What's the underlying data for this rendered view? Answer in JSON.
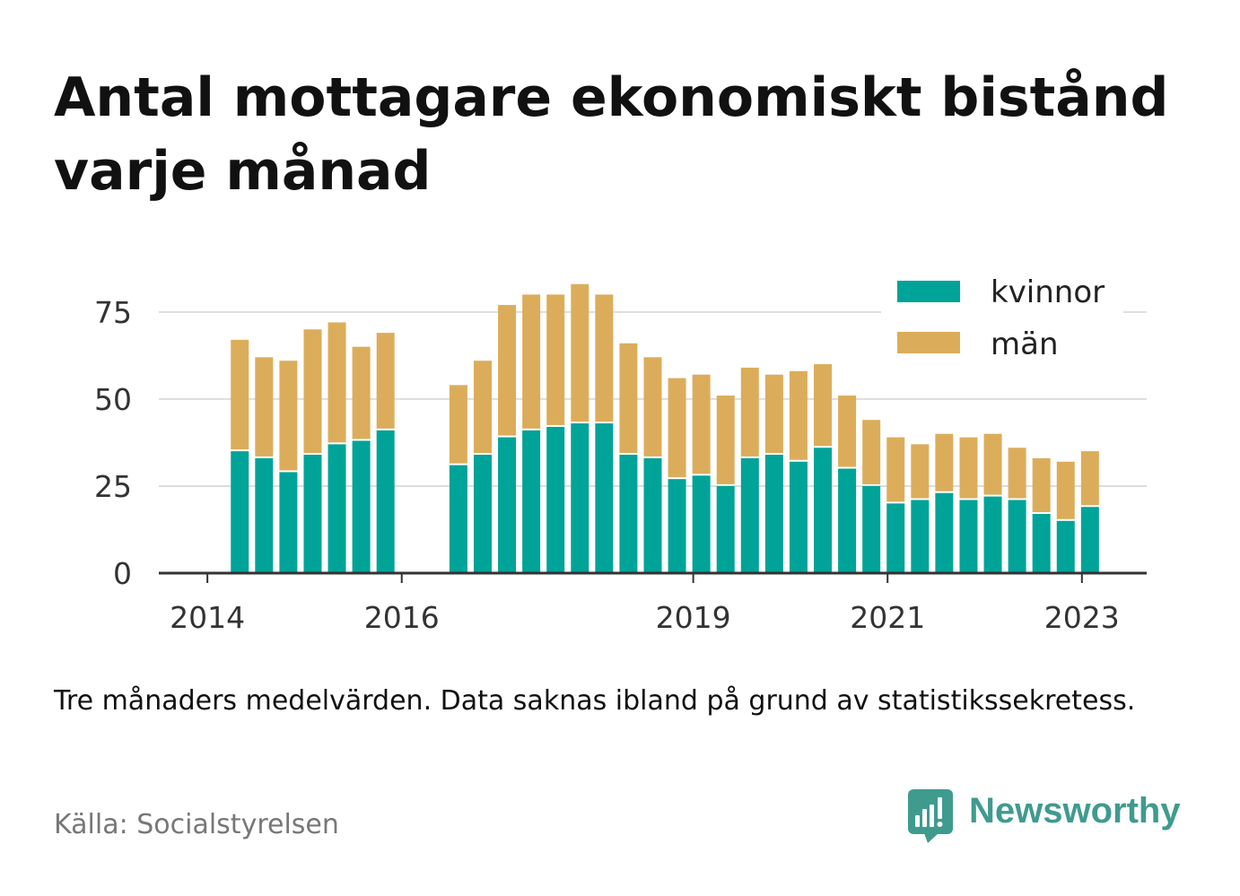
{
  "chart_data": {
    "type": "bar",
    "stacked": true,
    "title": "Antal mottagare ekonomiskt bistånd varje månad",
    "x_scale": "time",
    "xlim": [
      "2013-07",
      "2023-09"
    ],
    "ylim": [
      0,
      85
    ],
    "x_ticks": [
      "2014",
      "2016",
      "2019",
      "2021",
      "2023"
    ],
    "y_ticks": [
      0,
      25,
      50,
      75
    ],
    "grid": true,
    "legend_position": "top-right",
    "x": [
      "2014-05",
      "2014-08",
      "2014-11",
      "2015-02",
      "2015-05",
      "2015-08",
      "2015-11",
      "2016-08",
      "2016-11",
      "2017-02",
      "2017-05",
      "2017-08",
      "2017-11",
      "2018-02",
      "2018-05",
      "2018-08",
      "2018-11",
      "2019-02",
      "2019-05",
      "2019-08",
      "2019-11",
      "2020-02",
      "2020-05",
      "2020-08",
      "2020-11",
      "2021-02",
      "2021-05",
      "2021-08",
      "2021-11",
      "2022-02",
      "2022-05",
      "2022-08",
      "2022-11",
      "2023-02"
    ],
    "series": [
      {
        "name": "kvinnor",
        "color": "#00a398",
        "values": [
          35,
          33,
          29,
          34,
          37,
          38,
          41,
          31,
          34,
          39,
          41,
          42,
          43,
          43,
          34,
          33,
          27,
          28,
          25,
          33,
          34,
          32,
          36,
          30,
          25,
          20,
          21,
          23,
          21,
          22,
          21,
          17,
          15,
          19
        ]
      },
      {
        "name": "män",
        "color": "#dbad5b",
        "values": [
          32,
          29,
          32,
          36,
          35,
          27,
          28,
          23,
          27,
          38,
          39,
          38,
          40,
          37,
          32,
          29,
          29,
          29,
          26,
          26,
          23,
          26,
          24,
          21,
          19,
          19,
          16,
          17,
          18,
          18,
          15,
          16,
          17,
          16
        ]
      }
    ]
  },
  "footnote": "Tre månaders medelvärden. Data saknas ibland på grund av statistikssekretess.",
  "source": "Källa: Socialstyrelsen",
  "logo": {
    "icon": "newsworthy-logo-icon",
    "text": "Newsworthy"
  },
  "colors": {
    "background": "#ffffff",
    "title": "#111111",
    "tick_text": "#333333",
    "grid": "#dddddd",
    "axis": "#333333",
    "source": "#777777",
    "brand": "#3f9b8e"
  }
}
